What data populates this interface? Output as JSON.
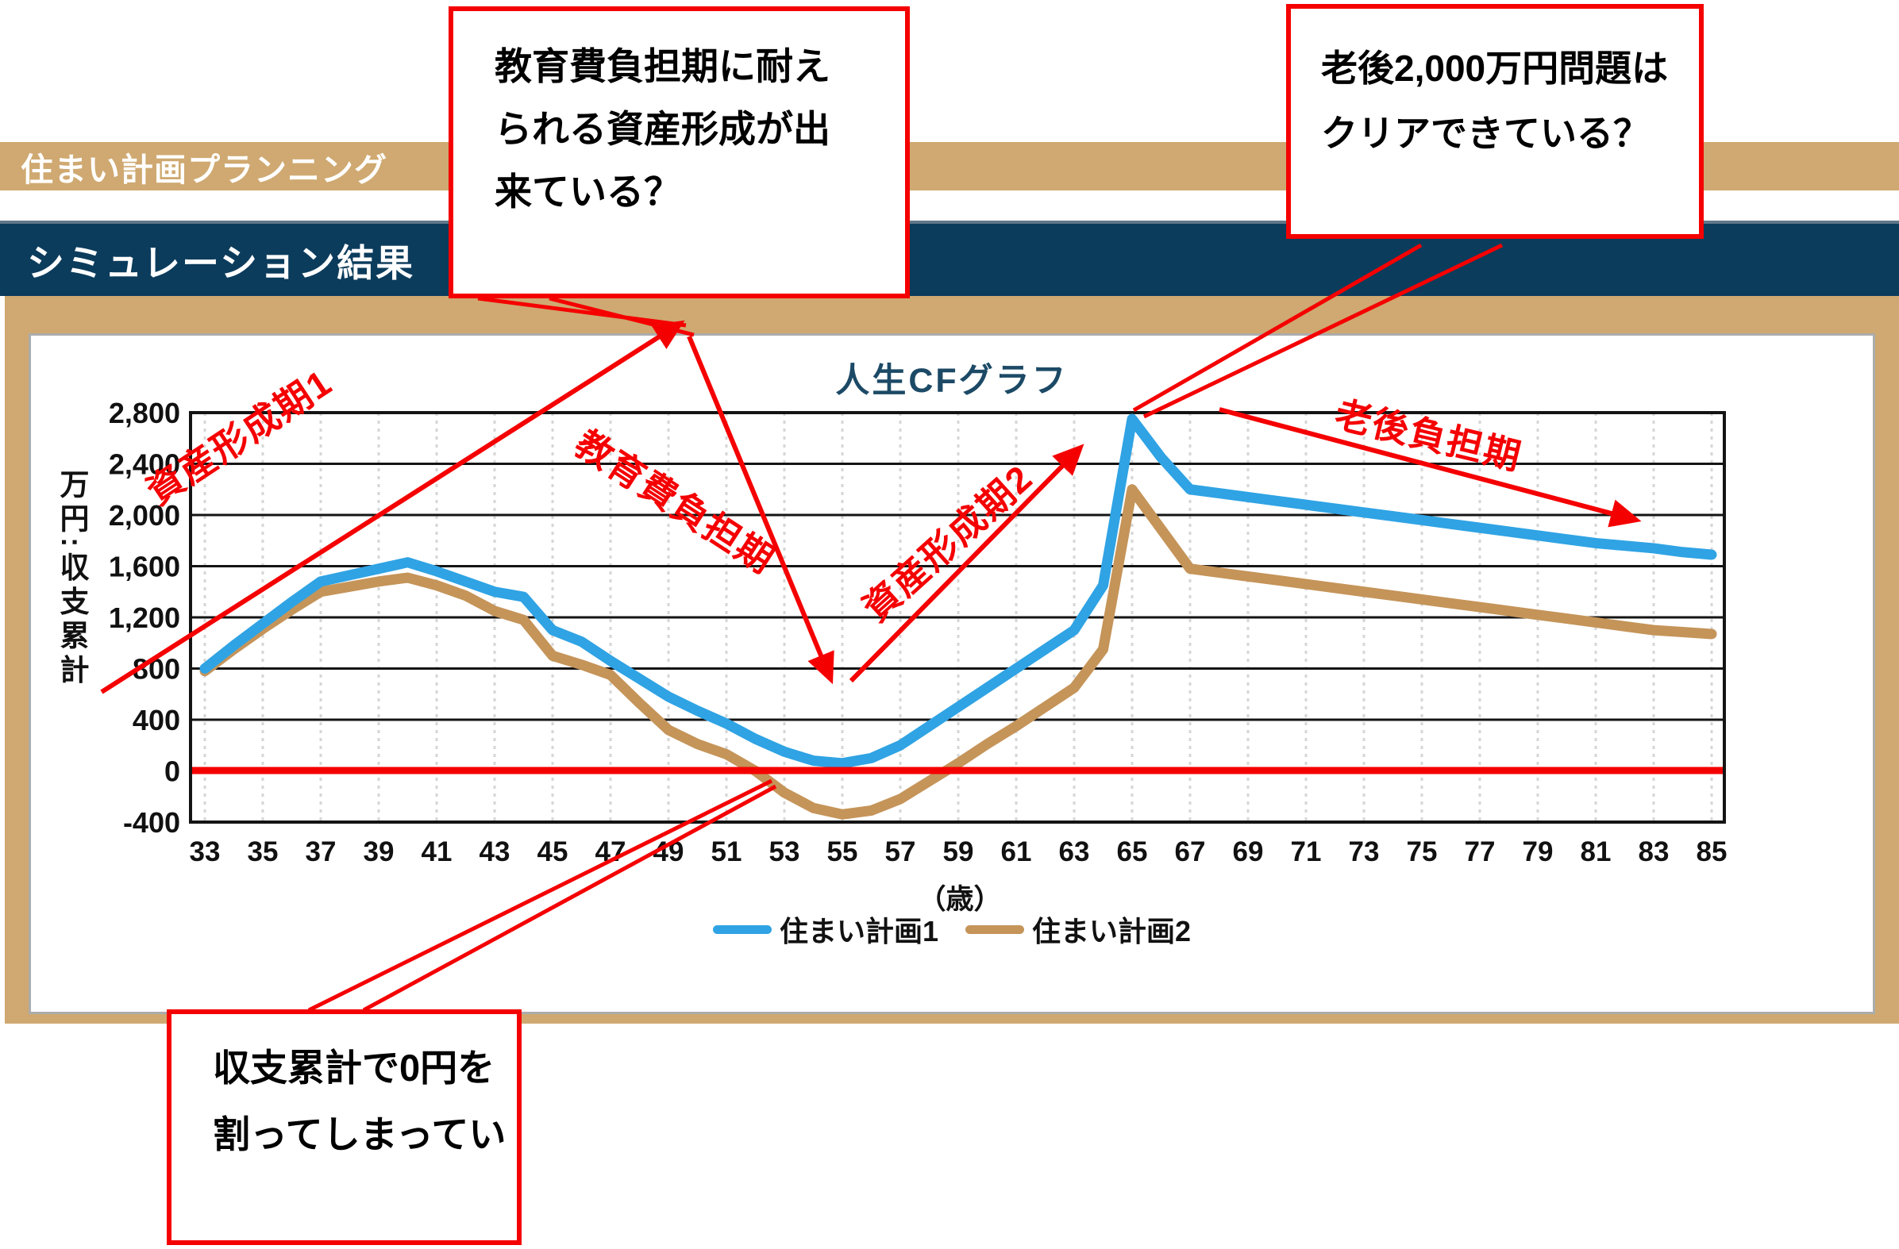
{
  "header": {
    "plan_title": "住まい計画プランニング",
    "section_title": "シミュレーション結果"
  },
  "chart": {
    "title": "人生CFグラフ",
    "y_axis_label": "万円:収支累計",
    "x_axis_unit": "（歳）",
    "legend": [
      {
        "label": "住まい計画1",
        "color": "#2fa3e4"
      },
      {
        "label": "住まい計画2",
        "color": "#c59459"
      }
    ]
  },
  "chart_data": {
    "type": "line",
    "title": "人生CFグラフ",
    "xlabel": "（歳）",
    "ylabel": "万円:収支累計",
    "ylim": [
      -400,
      2800
    ],
    "ytick_interval": 400,
    "xtick_interval": 2,
    "grid": true,
    "zero_line_color": "#f50000",
    "x": [
      33,
      34,
      35,
      36,
      37,
      38,
      39,
      40,
      41,
      42,
      43,
      44,
      45,
      46,
      47,
      48,
      49,
      50,
      51,
      52,
      53,
      54,
      55,
      56,
      57,
      58,
      59,
      60,
      61,
      62,
      63,
      64,
      65,
      66,
      67,
      68,
      69,
      70,
      71,
      72,
      73,
      74,
      75,
      76,
      77,
      78,
      79,
      80,
      81,
      82,
      83,
      84,
      85
    ],
    "series": [
      {
        "name": "住まい計画1",
        "color": "#2fa3e4",
        "values": [
          800,
          980,
          1150,
          1320,
          1480,
          1530,
          1580,
          1630,
          1560,
          1480,
          1400,
          1360,
          1100,
          1010,
          860,
          720,
          580,
          470,
          370,
          250,
          150,
          80,
          60,
          100,
          200,
          350,
          500,
          650,
          800,
          950,
          1100,
          1450,
          2750,
          2450,
          2200,
          2170,
          2140,
          2110,
          2080,
          2050,
          2020,
          1990,
          1960,
          1930,
          1900,
          1870,
          1840,
          1810,
          1780,
          1760,
          1740,
          1710,
          1690
        ]
      },
      {
        "name": "住まい計画2",
        "color": "#c59459",
        "values": [
          780,
          950,
          1110,
          1260,
          1400,
          1440,
          1480,
          1510,
          1450,
          1370,
          1250,
          1180,
          900,
          830,
          750,
          530,
          320,
          210,
          130,
          0,
          -170,
          -290,
          -340,
          -310,
          -220,
          -80,
          60,
          210,
          350,
          500,
          650,
          950,
          2200,
          1890,
          1580,
          1550,
          1520,
          1490,
          1460,
          1430,
          1400,
          1370,
          1340,
          1310,
          1280,
          1250,
          1220,
          1190,
          1160,
          1130,
          1100,
          1085,
          1070
        ]
      }
    ]
  },
  "annotations": {
    "periods": [
      {
        "label": "資産形成期1"
      },
      {
        "label": "教育費負担期"
      },
      {
        "label": "資産形成期2"
      },
      {
        "label": "老後負担期"
      }
    ]
  },
  "callouts": {
    "education": {
      "lines": [
        "教育費負担期に耐え",
        "られる資産形成が出",
        "来ている？"
      ]
    },
    "retirement": {
      "lines": [
        "老後2,000万円問題は",
        "クリアできている？"
      ]
    },
    "deficit": {
      "lines": [
        "収支累計で0円を",
        "割ってしまってい"
      ]
    }
  },
  "colors": {
    "accent_tan": "#cfa971",
    "navy": "#0c3c5c",
    "annotation_red": "#f50000",
    "chart_title": "#1c4a66"
  }
}
